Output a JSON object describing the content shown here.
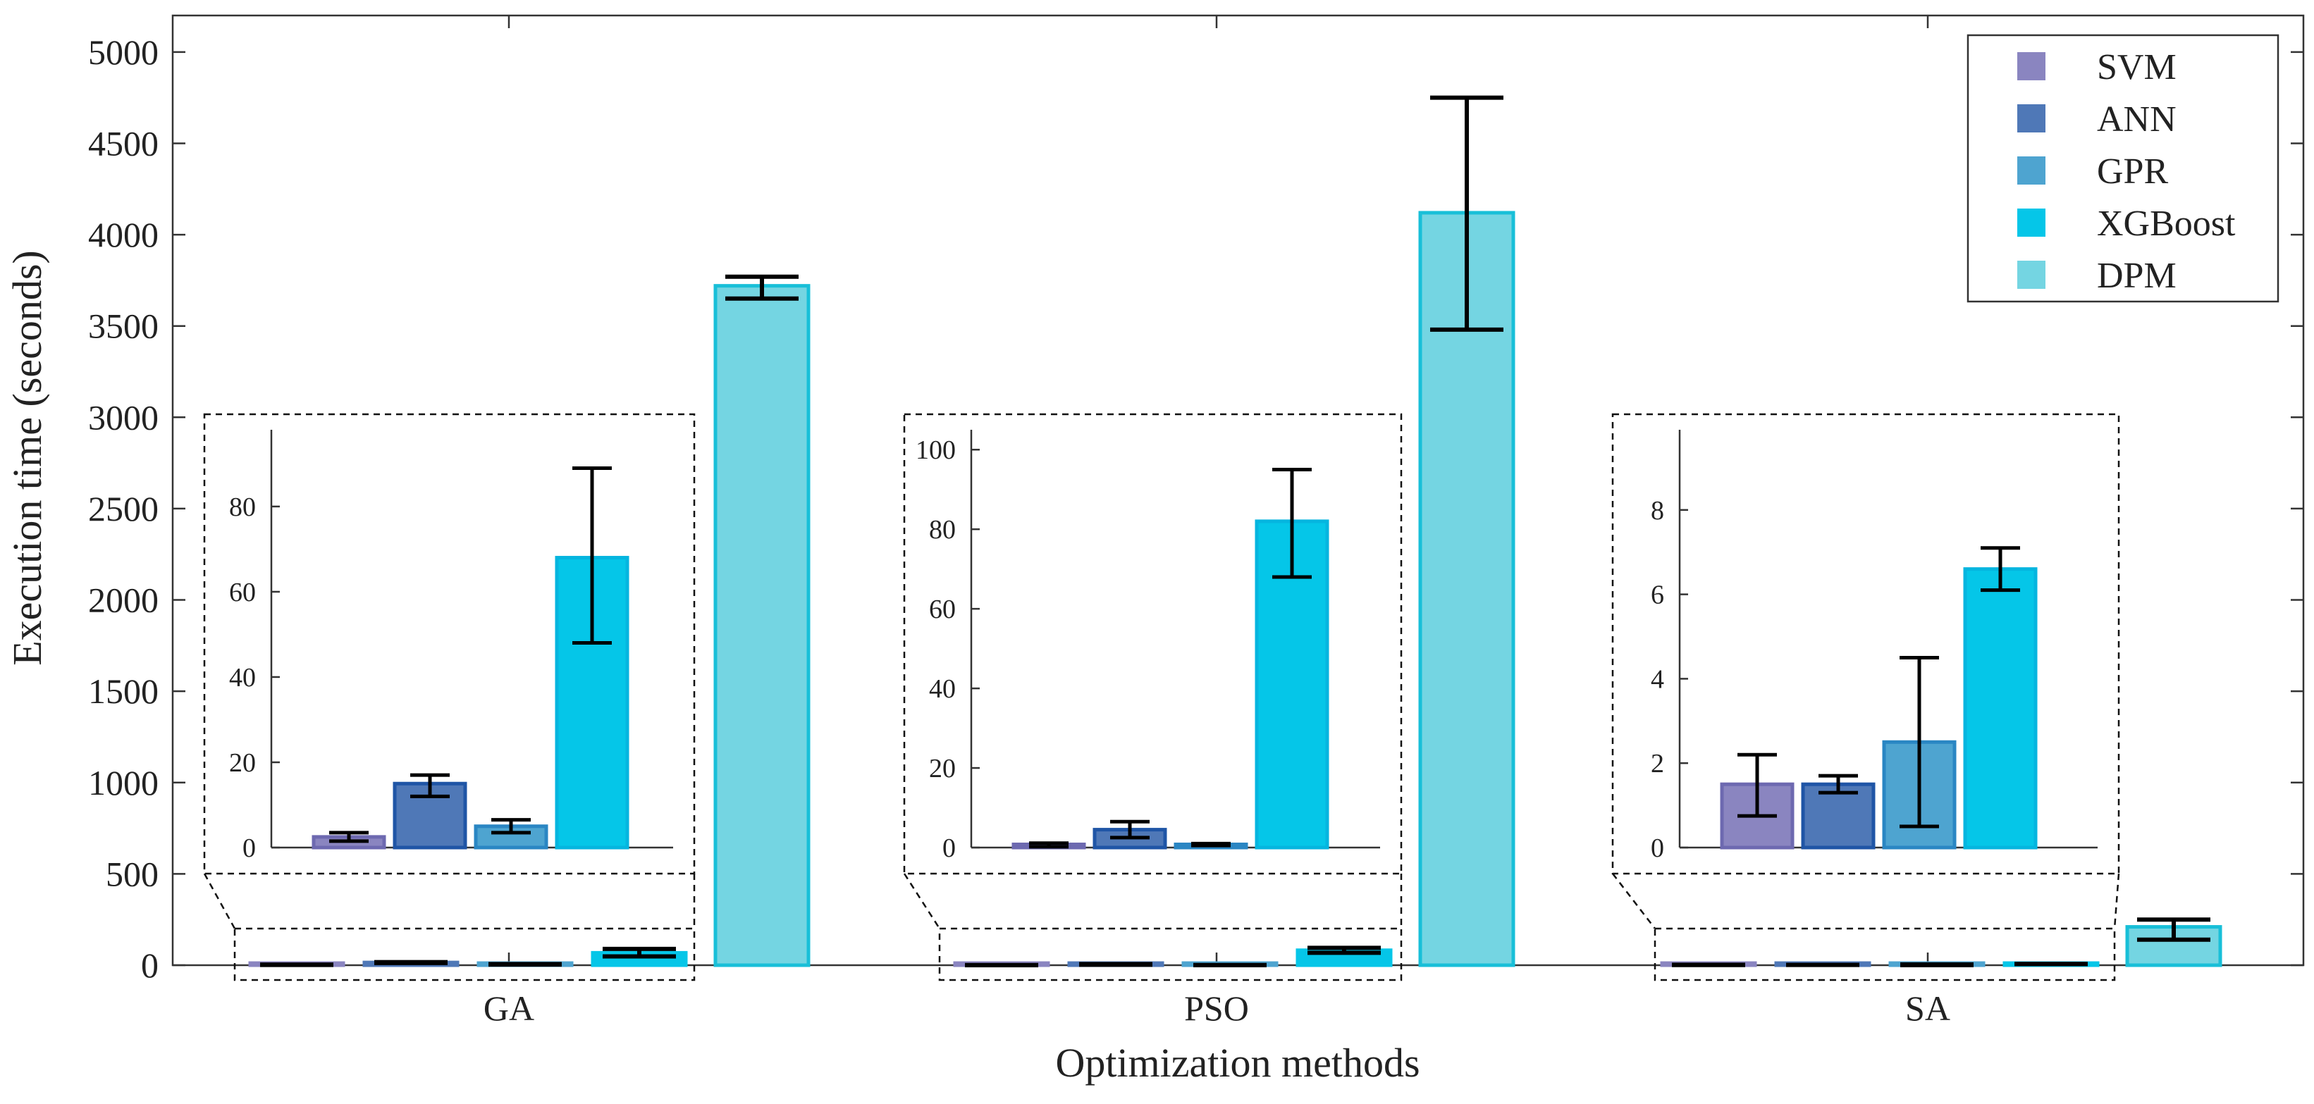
{
  "chart_data": {
    "type": "bar",
    "xlabel": "Optimization methods",
    "ylabel": "Execution time (seconds)",
    "ylim": [
      0,
      5200
    ],
    "yticks": [
      0,
      500,
      1000,
      1500,
      2000,
      2500,
      3000,
      3500,
      4000,
      4500,
      5000
    ],
    "grid": false,
    "legend_position": "top-right",
    "categories": [
      "GA",
      "PSO",
      "SA"
    ],
    "series": [
      {
        "name": "SVM",
        "color": "#8a85c0",
        "values": [
          2.5,
          0.8,
          1.5
        ],
        "err_low": [
          1.5,
          0.2,
          0.75
        ],
        "err_high": [
          3.5,
          1.1,
          2.2
        ]
      },
      {
        "name": "ANN",
        "color": "#4f78b7",
        "values": [
          15,
          4.5,
          1.5
        ],
        "err_low": [
          12,
          2.5,
          1.3
        ],
        "err_high": [
          17,
          6.5,
          1.7
        ]
      },
      {
        "name": "GPR",
        "color": "#4ea4d0",
        "values": [
          5,
          0.8,
          2.5
        ],
        "err_low": [
          3.5,
          0.5,
          0.5
        ],
        "err_high": [
          6.5,
          1.0,
          4.5
        ]
      },
      {
        "name": "XGBoost",
        "color": "#05c6e8",
        "values": [
          68,
          82,
          6.6
        ],
        "err_low": [
          48,
          68,
          6.1
        ],
        "err_high": [
          89,
          95,
          7.1
        ]
      },
      {
        "name": "DPM",
        "color": "#74d5e2",
        "values": [
          3720,
          4120,
          210
        ],
        "err_low": [
          3650,
          3480,
          140
        ],
        "err_high": [
          3770,
          4750,
          250
        ]
      }
    ],
    "insets": [
      {
        "category": "GA",
        "ylim": [
          0,
          98
        ],
        "yticks": [
          0,
          20,
          40,
          60,
          80
        ]
      },
      {
        "category": "PSO",
        "ylim": [
          0,
          105
        ],
        "yticks": [
          0,
          20,
          40,
          60,
          80,
          100
        ]
      },
      {
        "category": "SA",
        "ylim": [
          0,
          9.9
        ],
        "yticks": [
          0,
          2,
          4,
          6,
          8
        ]
      }
    ]
  }
}
